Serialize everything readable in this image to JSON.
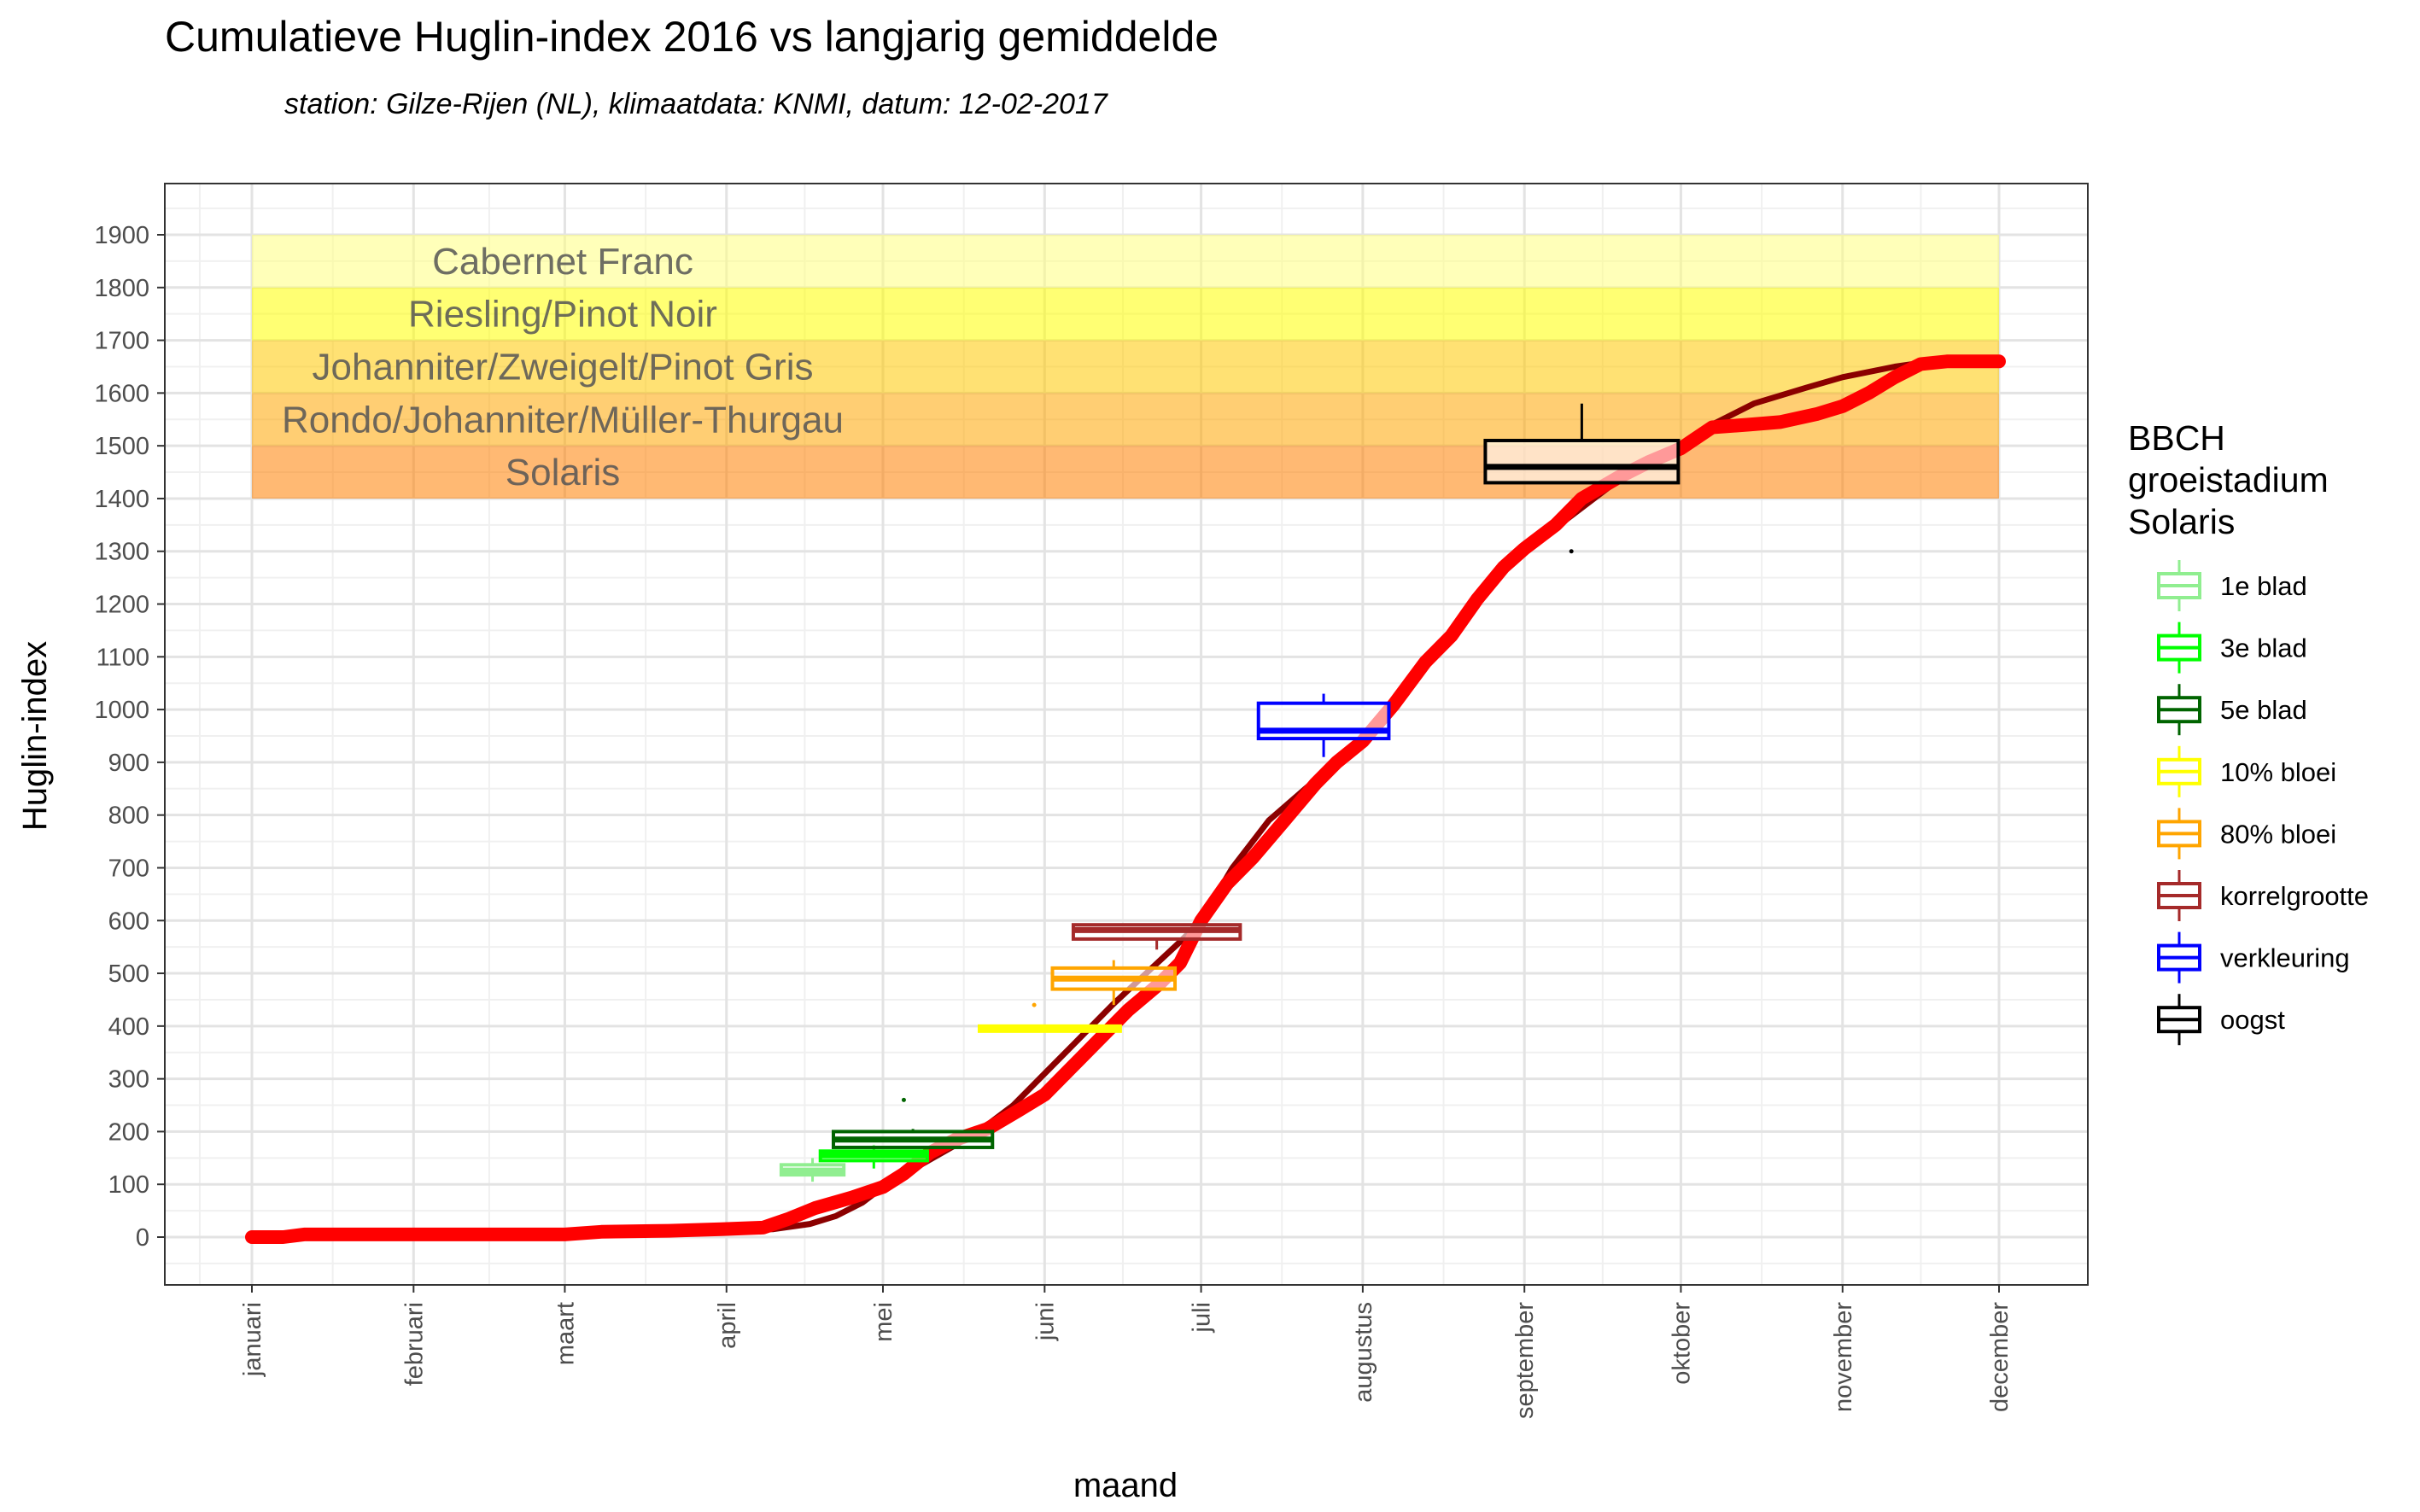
{
  "chart_data": {
    "type": "line",
    "title": "Cumulatieve Huglin-index 2016 vs langjarig gemiddelde",
    "subtitle": "station: Gilze-Rijen (NL), klimaatdata: KNMI, datum: 12-02-2017",
    "xlabel": "maand",
    "ylabel": "Huglin-index",
    "xlim": [
      -10,
      340
    ],
    "ylim": [
      -100,
      2000
    ],
    "grid": true,
    "x_tick_labels": [
      "januari",
      "februari",
      "maart",
      "april",
      "mei",
      "juni",
      "juli",
      "augustus",
      "september",
      "oktober",
      "november",
      "december"
    ],
    "x_tick_days": [
      0,
      31,
      60,
      91,
      121,
      152,
      182,
      213,
      244,
      274,
      305,
      335
    ],
    "y_ticks": [
      0,
      100,
      200,
      300,
      400,
      500,
      600,
      700,
      800,
      900,
      1000,
      1100,
      1200,
      1300,
      1400,
      1500,
      1600,
      1700,
      1800,
      1900
    ],
    "bands": [
      {
        "label": "Solaris",
        "ymin": 1400,
        "ymax": 1500,
        "color": "#FF7F00",
        "opacity": 0.55
      },
      {
        "label": "Rondo/Johanniter/Müller-Thurgau",
        "ymin": 1500,
        "ymax": 1600,
        "color": "#FFA500",
        "opacity": 0.55
      },
      {
        "label": "Johanniter/Zweigelt/Pinot Gris",
        "ymin": 1600,
        "ymax": 1700,
        "color": "#FFC800",
        "opacity": 0.55
      },
      {
        "label": "Riesling/Pinot Noir",
        "ymin": 1700,
        "ymax": 1800,
        "color": "#FFFF00",
        "opacity": 0.55
      },
      {
        "label": "Cabernet Franc",
        "ymin": 1800,
        "ymax": 1900,
        "color": "#FFFF80",
        "opacity": 0.55
      }
    ],
    "band_xrange": [
      0,
      335
    ],
    "series": [
      {
        "color": "#8B0000",
        "points": [
          [
            0,
            0
          ],
          [
            91,
            13
          ],
          [
            100,
            15
          ],
          [
            107,
            25
          ],
          [
            112,
            40
          ],
          [
            117,
            65
          ],
          [
            121,
            95
          ],
          [
            127,
            130
          ],
          [
            135,
            175
          ],
          [
            140,
            205
          ],
          [
            146,
            250
          ],
          [
            152,
            310
          ],
          [
            158,
            370
          ],
          [
            165,
            440
          ],
          [
            172,
            505
          ],
          [
            178,
            560
          ],
          [
            182,
            600
          ],
          [
            188,
            700
          ],
          [
            195,
            790
          ],
          [
            202,
            850
          ],
          [
            208,
            900
          ],
          [
            213,
            940
          ],
          [
            220,
            1020
          ],
          [
            227,
            1110
          ],
          [
            233,
            1190
          ],
          [
            239,
            1260
          ],
          [
            244,
            1310
          ],
          [
            252,
            1360
          ],
          [
            260,
            1420
          ],
          [
            267,
            1465
          ],
          [
            274,
            1500
          ],
          [
            280,
            1540
          ],
          [
            288,
            1580
          ],
          [
            298,
            1610
          ],
          [
            305,
            1630
          ],
          [
            315,
            1650
          ],
          [
            322,
            1660
          ],
          [
            328,
            1660
          ],
          [
            335,
            1660
          ]
        ]
      },
      {
        "color": "#FF0000",
        "points": [
          [
            0,
            0
          ],
          [
            6,
            0
          ],
          [
            10,
            5
          ],
          [
            60,
            5
          ],
          [
            67,
            10
          ],
          [
            80,
            12
          ],
          [
            90,
            15
          ],
          [
            98,
            18
          ],
          [
            103,
            35
          ],
          [
            108,
            55
          ],
          [
            115,
            75
          ],
          [
            121,
            95
          ],
          [
            125,
            120
          ],
          [
            130,
            160
          ],
          [
            135,
            185
          ],
          [
            141,
            205
          ],
          [
            147,
            240
          ],
          [
            152,
            270
          ],
          [
            157,
            320
          ],
          [
            162,
            370
          ],
          [
            168,
            430
          ],
          [
            174,
            480
          ],
          [
            178,
            520
          ],
          [
            182,
            600
          ],
          [
            187,
            670
          ],
          [
            192,
            720
          ],
          [
            198,
            790
          ],
          [
            204,
            860
          ],
          [
            208,
            900
          ],
          [
            213,
            940
          ],
          [
            219,
            1010
          ],
          [
            225,
            1090
          ],
          [
            230,
            1140
          ],
          [
            235,
            1210
          ],
          [
            240,
            1270
          ],
          [
            244,
            1305
          ],
          [
            250,
            1350
          ],
          [
            255,
            1400
          ],
          [
            262,
            1440
          ],
          [
            268,
            1470
          ],
          [
            274,
            1495
          ],
          [
            280,
            1535
          ],
          [
            287,
            1540
          ],
          [
            293,
            1545
          ],
          [
            300,
            1560
          ],
          [
            305,
            1575
          ],
          [
            310,
            1600
          ],
          [
            315,
            1630
          ],
          [
            320,
            1655
          ],
          [
            325,
            1660
          ],
          [
            330,
            1660
          ],
          [
            335,
            1660
          ]
        ]
      }
    ],
    "boxplots": [
      {
        "stage": "1e blad",
        "color": "#90EE90",
        "xmin": 101.5,
        "q1": 118,
        "median": 126,
        "q3": 137,
        "xmax": 113.5,
        "whisker_low": 105,
        "whisker_high": 150,
        "outliers": []
      },
      {
        "stage": "3e blad",
        "color": "#00FF00",
        "xmin": 109,
        "q1": 145,
        "median": 155,
        "q3": 163,
        "xmax": 129.5,
        "whisker_low": 130,
        "whisker_high": 175,
        "outliers": []
      },
      {
        "stage": "5e blad",
        "color": "#006400",
        "xmin": 111.5,
        "q1": 170,
        "median": 185,
        "q3": 200,
        "xmax": 142,
        "whisker_low": 170,
        "whisker_high": 205,
        "outliers": [
          [
            125,
            260
          ]
        ]
      },
      {
        "stage": "10% bloei",
        "color": "#FFFF00",
        "xmin": 139.5,
        "q1": 393,
        "median": 396,
        "q3": 400,
        "xmax": 166.5,
        "whisker_low": 390,
        "whisker_high": 400,
        "outliers": []
      },
      {
        "stage": "80% bloei",
        "color": "#FFA500",
        "xmin": 153.5,
        "q1": 470,
        "median": 490,
        "q3": 510,
        "xmax": 177,
        "whisker_low": 440,
        "whisker_high": 525,
        "outliers": [
          [
            150,
            440
          ]
        ]
      },
      {
        "stage": "korrelgrootte",
        "color": "#A52A2A",
        "xmin": 157.5,
        "q1": 565,
        "median": 582,
        "q3": 592,
        "xmax": 189.5,
        "whisker_low": 545,
        "whisker_high": 592,
        "outliers": []
      },
      {
        "stage": "verkleuring",
        "color": "#0000FF",
        "xmin": 193,
        "q1": 945,
        "median": 960,
        "q3": 1012,
        "xmax": 218,
        "whisker_low": 910,
        "whisker_high": 1030,
        "outliers": []
      },
      {
        "stage": "oogst",
        "color": "#000000",
        "xmin": 236.5,
        "q1": 1430,
        "median": 1460,
        "q3": 1510,
        "xmax": 273.5,
        "whisker_low": 1430,
        "whisker_high": 1580,
        "outliers": [
          [
            253,
            1300
          ]
        ]
      }
    ],
    "legend": {
      "title": [
        "BBCH",
        "groeistadium",
        "Solaris"
      ],
      "position": "right",
      "items": [
        {
          "label": "1e blad",
          "color": "#90EE90"
        },
        {
          "label": "3e blad",
          "color": "#00FF00"
        },
        {
          "label": "5e blad",
          "color": "#006400"
        },
        {
          "label": "10% bloei",
          "color": "#FFFF00"
        },
        {
          "label": "80% bloei",
          "color": "#FFA500"
        },
        {
          "label": "korrelgrootte",
          "color": "#A52A2A"
        },
        {
          "label": "verkleuring",
          "color": "#0000FF"
        },
        {
          "label": "oogst",
          "color": "#000000"
        }
      ]
    }
  }
}
